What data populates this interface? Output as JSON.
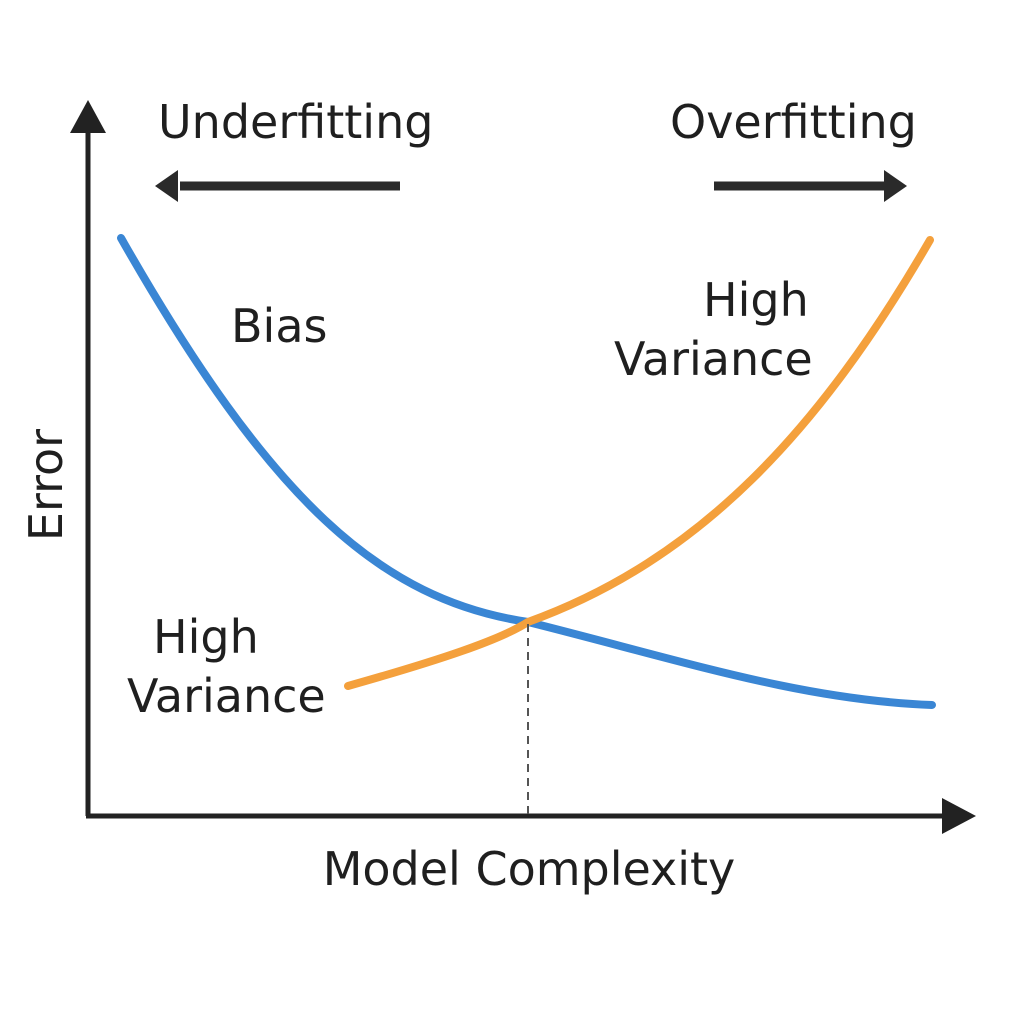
{
  "axes": {
    "x_label": "Model Complexity",
    "y_label": "Error"
  },
  "regions": {
    "left_label": "Underfitting",
    "right_label": "Overfitting"
  },
  "curves": {
    "bias": {
      "label": "Bias",
      "color": "#3a86d4"
    },
    "variance": {
      "color": "#f4a03c",
      "label_right_line1": "High",
      "label_right_line2": "Variance",
      "label_left_line1": "High",
      "label_left_line2": "Variance"
    }
  },
  "colors": {
    "axis": "#222222",
    "text": "#1f1f1f"
  }
}
